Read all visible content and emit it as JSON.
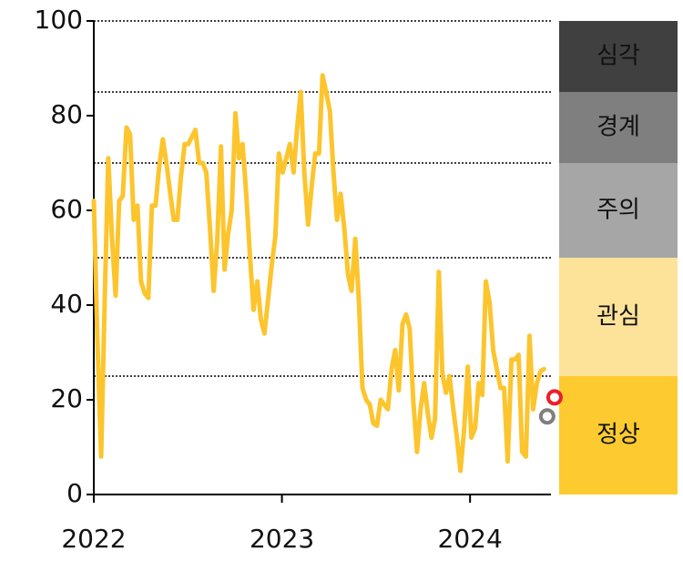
{
  "chart_data": {
    "type": "line",
    "x": [
      2022,
      2022.019,
      2022.039,
      2022.058,
      2022.077,
      2022.097,
      2022.116,
      2022.135,
      2022.154,
      2022.174,
      2022.193,
      2022.212,
      2022.232,
      2022.251,
      2022.27,
      2022.29,
      2022.309,
      2022.328,
      2022.347,
      2022.367,
      2022.386,
      2022.405,
      2022.425,
      2022.444,
      2022.463,
      2022.483,
      2022.502,
      2022.521,
      2022.54,
      2022.56,
      2022.579,
      2022.598,
      2022.618,
      2022.637,
      2022.656,
      2022.676,
      2022.695,
      2022.714,
      2022.733,
      2022.753,
      2022.772,
      2022.791,
      2022.811,
      2022.83,
      2022.849,
      2022.869,
      2022.888,
      2022.907,
      2022.926,
      2022.946,
      2022.965,
      2022.984,
      2023.004,
      2023.023,
      2023.042,
      2023.062,
      2023.081,
      2023.1,
      2023.119,
      2023.139,
      2023.158,
      2023.177,
      2023.197,
      2023.216,
      2023.235,
      2023.255,
      2023.274,
      2023.293,
      2023.312,
      2023.332,
      2023.351,
      2023.37,
      2023.39,
      2023.409,
      2023.428,
      2023.448,
      2023.467,
      2023.486,
      2023.505,
      2023.525,
      2023.544,
      2023.563,
      2023.583,
      2023.602,
      2023.621,
      2023.641,
      2023.66,
      2023.679,
      2023.698,
      2023.718,
      2023.737,
      2023.756,
      2023.776,
      2023.795,
      2023.814,
      2023.834,
      2023.853,
      2023.872,
      2023.891,
      2023.911,
      2023.93,
      2023.949,
      2023.969,
      2023.988,
      2024.007,
      2024.027,
      2024.046,
      2024.065,
      2024.084,
      2024.104,
      2024.123,
      2024.142,
      2024.162,
      2024.181,
      2024.2,
      2024.22,
      2024.239,
      2024.258,
      2024.277,
      2024.297,
      2024.316,
      2024.335,
      2024.355,
      2024.374,
      2024.393
    ],
    "values": [
      62,
      33,
      8,
      41,
      71,
      54,
      42,
      62,
      63,
      77.5,
      76,
      58,
      61,
      45,
      42.5,
      41.5,
      61,
      61,
      69,
      75,
      70,
      64,
      58,
      58,
      67,
      74,
      74,
      75.5,
      77,
      70,
      70,
      68,
      56,
      43,
      53.5,
      73.5,
      47.5,
      55,
      60,
      80.5,
      71,
      74,
      63,
      50.5,
      39,
      45,
      37,
      34,
      41,
      48.5,
      54.5,
      72,
      68,
      71,
      74,
      68,
      77.5,
      85,
      68,
      57,
      65,
      72,
      72,
      88.5,
      85,
      81,
      68,
      58,
      63.5,
      56,
      46.5,
      43,
      54,
      41,
      22.5,
      20,
      19,
      15,
      14.5,
      20,
      19,
      18,
      26.5,
      30.5,
      22,
      36,
      38,
      35,
      20,
      9,
      18,
      23.5,
      17,
      12,
      16,
      47,
      25.5,
      21.5,
      25,
      18,
      12,
      5,
      14,
      27,
      12,
      14,
      23.5,
      21,
      45,
      40.5,
      30.5,
      26.5,
      22.5,
      22.5,
      7,
      28.5,
      28.5,
      29.5,
      9,
      8,
      33.5,
      18,
      23.5,
      26,
      26.5
    ],
    "color": "#fcc52e",
    "markers": [
      {
        "x": 2024.449,
        "value": 20.5,
        "color": "#e8202a"
      },
      {
        "x": 2024.41,
        "value": 16.5,
        "color": "#7f7f7f"
      }
    ],
    "bands": [
      {
        "label": "심각",
        "from": 85,
        "to": 100,
        "color": "#404040",
        "text_color": "#ffffff"
      },
      {
        "label": "경계",
        "from": 70,
        "to": 85,
        "color": "#7f7f7f",
        "text_color": "#ffffff"
      },
      {
        "label": "주의",
        "from": 50,
        "to": 70,
        "color": "#a6a6a6",
        "text_color": "#222222"
      },
      {
        "label": "관심",
        "from": 25,
        "to": 50,
        "color": "#fde39a",
        "text_color": "#222222"
      },
      {
        "label": "정상",
        "from": 0,
        "to": 25,
        "color": "#fdcb2f",
        "text_color": "#222222"
      }
    ],
    "xlim": [
      2022,
      2024.43
    ],
    "xticks": [
      2022,
      2023,
      2024
    ],
    "ylim": [
      0,
      100
    ],
    "yticks": [
      0,
      20,
      40,
      60,
      80,
      100
    ]
  }
}
